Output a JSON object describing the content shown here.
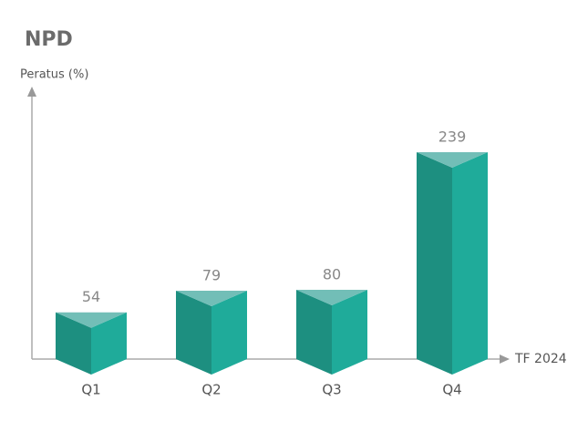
{
  "chart_data": {
    "type": "bar",
    "title": "NPD",
    "y_label": "Peratus (%)",
    "x_label": "TF 2024",
    "categories": [
      "Q1",
      "Q2",
      "Q3",
      "Q4"
    ],
    "values": [
      54,
      79,
      80,
      239
    ],
    "colors": {
      "left": "#1d8f80",
      "right": "#1fab9a",
      "top": "#72beb7"
    }
  }
}
